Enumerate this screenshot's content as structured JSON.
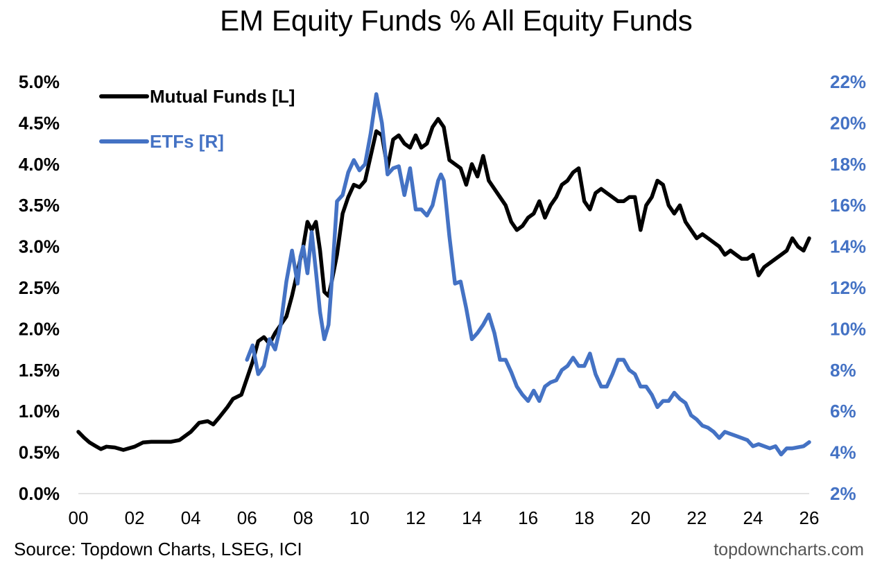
{
  "chart_data": {
    "type": "line",
    "title": "EM Equity Funds % All Equity Funds",
    "xlabel": "",
    "ylabel_left": "",
    "ylabel_right": "",
    "x_ticks": [
      "00",
      "02",
      "04",
      "06",
      "08",
      "10",
      "12",
      "14",
      "16",
      "18",
      "20",
      "22",
      "24",
      "26"
    ],
    "y_left_ticks": [
      "0.0%",
      "0.5%",
      "1.0%",
      "1.5%",
      "2.0%",
      "2.5%",
      "3.0%",
      "3.5%",
      "4.0%",
      "4.5%",
      "5.0%"
    ],
    "y_right_ticks": [
      "2%",
      "4%",
      "6%",
      "8%",
      "10%",
      "12%",
      "14%",
      "16%",
      "18%",
      "20%",
      "22%"
    ],
    "xlim": [
      2000,
      2026
    ],
    "ylim_left": [
      0,
      5
    ],
    "ylim_right": [
      2,
      22
    ],
    "grid": false,
    "legend_position": "top-left",
    "colors": {
      "mutual_funds": "#000000",
      "etfs": "#4472C4"
    },
    "series": [
      {
        "name": "Mutual Funds [L]",
        "axis": "left",
        "x": [
          2000.0,
          2000.2,
          2000.4,
          2000.6,
          2000.8,
          2001.0,
          2001.3,
          2001.6,
          2002.0,
          2002.3,
          2002.6,
          2003.0,
          2003.3,
          2003.6,
          2004.0,
          2004.3,
          2004.6,
          2004.8,
          2005.0,
          2005.3,
          2005.5,
          2005.8,
          2006.0,
          2006.2,
          2006.4,
          2006.6,
          2006.8,
          2007.0,
          2007.2,
          2007.4,
          2007.6,
          2007.8,
          2008.0,
          2008.15,
          2008.3,
          2008.45,
          2008.6,
          2008.75,
          2008.9,
          2009.0,
          2009.2,
          2009.4,
          2009.6,
          2009.8,
          2010.0,
          2010.2,
          2010.4,
          2010.6,
          2010.8,
          2011.0,
          2011.2,
          2011.4,
          2011.6,
          2011.8,
          2012.0,
          2012.2,
          2012.4,
          2012.6,
          2012.8,
          2012.9,
          2013.0,
          2013.2,
          2013.4,
          2013.6,
          2013.8,
          2014.0,
          2014.2,
          2014.4,
          2014.6,
          2014.8,
          2015.0,
          2015.2,
          2015.4,
          2015.6,
          2015.8,
          2016.0,
          2016.2,
          2016.4,
          2016.6,
          2016.8,
          2017.0,
          2017.2,
          2017.4,
          2017.6,
          2017.8,
          2018.0,
          2018.2,
          2018.4,
          2018.6,
          2018.8,
          2019.0,
          2019.2,
          2019.4,
          2019.6,
          2019.8,
          2020.0,
          2020.2,
          2020.4,
          2020.6,
          2020.8,
          2021.0,
          2021.2,
          2021.4,
          2021.6,
          2021.8,
          2022.0,
          2022.2,
          2022.4,
          2022.6,
          2022.8,
          2023.0,
          2023.2,
          2023.4,
          2023.6,
          2023.8,
          2024.0,
          2024.2,
          2024.4,
          2024.6,
          2024.8,
          2025.0,
          2025.2,
          2025.4,
          2025.6,
          2025.8,
          2026.0
        ],
        "y": [
          0.75,
          0.68,
          0.62,
          0.58,
          0.54,
          0.57,
          0.56,
          0.53,
          0.57,
          0.62,
          0.63,
          0.63,
          0.63,
          0.65,
          0.75,
          0.86,
          0.88,
          0.84,
          0.92,
          1.05,
          1.15,
          1.2,
          1.4,
          1.6,
          1.85,
          1.9,
          1.82,
          1.95,
          2.05,
          2.15,
          2.4,
          2.7,
          3.0,
          3.3,
          3.2,
          3.3,
          2.95,
          2.45,
          2.4,
          2.55,
          2.9,
          3.4,
          3.6,
          3.75,
          3.72,
          3.8,
          4.1,
          4.4,
          4.35,
          3.95,
          4.3,
          4.35,
          4.25,
          4.2,
          4.35,
          4.2,
          4.25,
          4.45,
          4.55,
          4.5,
          4.45,
          4.05,
          4.0,
          3.95,
          3.75,
          4.0,
          3.85,
          4.1,
          3.8,
          3.7,
          3.6,
          3.5,
          3.3,
          3.2,
          3.25,
          3.35,
          3.4,
          3.55,
          3.35,
          3.5,
          3.6,
          3.75,
          3.8,
          3.9,
          3.95,
          3.55,
          3.45,
          3.65,
          3.7,
          3.65,
          3.6,
          3.55,
          3.55,
          3.6,
          3.6,
          3.2,
          3.5,
          3.6,
          3.8,
          3.75,
          3.5,
          3.4,
          3.5,
          3.3,
          3.2,
          3.1,
          3.15,
          3.1,
          3.05,
          3.0,
          2.9,
          2.95,
          2.9,
          2.85,
          2.85,
          2.9,
          2.65,
          2.75,
          2.8,
          2.85,
          2.9,
          2.95,
          3.1,
          3.0,
          2.95,
          3.1
        ]
      },
      {
        "name": "ETFs [R]",
        "axis": "right",
        "x": [
          2006.0,
          2006.2,
          2006.4,
          2006.6,
          2006.8,
          2007.0,
          2007.2,
          2007.4,
          2007.6,
          2007.8,
          2007.9,
          2008.0,
          2008.15,
          2008.3,
          2008.45,
          2008.6,
          2008.75,
          2008.9,
          2009.0,
          2009.2,
          2009.4,
          2009.6,
          2009.8,
          2010.0,
          2010.2,
          2010.4,
          2010.6,
          2010.8,
          2011.0,
          2011.2,
          2011.4,
          2011.6,
          2011.8,
          2012.0,
          2012.2,
          2012.4,
          2012.6,
          2012.8,
          2012.9,
          2013.0,
          2013.2,
          2013.4,
          2013.6,
          2013.8,
          2014.0,
          2014.2,
          2014.4,
          2014.6,
          2014.8,
          2015.0,
          2015.2,
          2015.4,
          2015.6,
          2015.8,
          2016.0,
          2016.2,
          2016.4,
          2016.6,
          2016.8,
          2017.0,
          2017.2,
          2017.4,
          2017.6,
          2017.8,
          2018.0,
          2018.2,
          2018.4,
          2018.6,
          2018.8,
          2019.0,
          2019.2,
          2019.4,
          2019.6,
          2019.8,
          2020.0,
          2020.2,
          2020.4,
          2020.6,
          2020.8,
          2021.0,
          2021.2,
          2021.4,
          2021.6,
          2021.8,
          2022.0,
          2022.2,
          2022.4,
          2022.6,
          2022.8,
          2023.0,
          2023.2,
          2023.4,
          2023.6,
          2023.8,
          2024.0,
          2024.2,
          2024.4,
          2024.6,
          2024.8,
          2025.0,
          2025.2,
          2025.4,
          2025.6,
          2025.8,
          2026.0
        ],
        "y": [
          8.5,
          9.2,
          7.8,
          8.2,
          9.5,
          9.0,
          10.2,
          12.3,
          13.8,
          12.2,
          13.5,
          14.0,
          12.7,
          14.7,
          12.8,
          10.8,
          9.5,
          10.2,
          12.0,
          16.2,
          16.5,
          17.6,
          18.2,
          17.7,
          18.0,
          19.5,
          21.4,
          20.0,
          17.5,
          17.8,
          17.9,
          16.5,
          17.8,
          15.8,
          15.8,
          15.5,
          16.0,
          17.2,
          17.5,
          17.2,
          14.5,
          12.2,
          12.3,
          11.0,
          9.5,
          9.8,
          10.2,
          10.7,
          9.8,
          8.5,
          8.5,
          7.9,
          7.2,
          6.8,
          6.5,
          7.0,
          6.5,
          7.2,
          7.4,
          7.5,
          8.0,
          8.2,
          8.6,
          8.2,
          8.2,
          8.8,
          7.8,
          7.2,
          7.2,
          7.8,
          8.5,
          8.5,
          8.0,
          7.8,
          7.2,
          7.2,
          6.8,
          6.2,
          6.5,
          6.5,
          6.9,
          6.6,
          6.4,
          5.8,
          5.6,
          5.3,
          5.2,
          5.0,
          4.7,
          5.0,
          4.9,
          4.8,
          4.7,
          4.6,
          4.3,
          4.4,
          4.3,
          4.2,
          4.3,
          3.9,
          4.2,
          4.2,
          4.25,
          4.3,
          4.5
        ]
      }
    ]
  },
  "source": "Source: Topdown Charts, LSEG, ICI",
  "brand": "topdowncharts.com"
}
